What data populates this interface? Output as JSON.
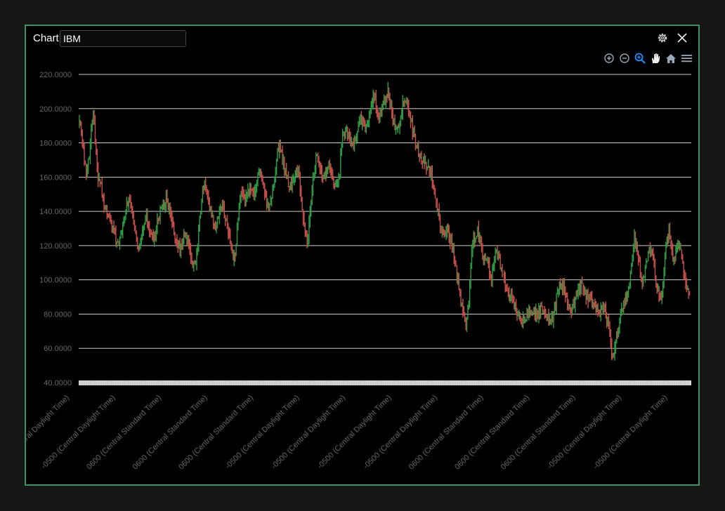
{
  "header": {
    "label": "Chart",
    "symbol_value": "IBM"
  },
  "icons": {
    "settings": "gear-icon",
    "close": "close-icon",
    "toolbar": [
      "zoom-in-icon",
      "zoom-out-icon",
      "zoom-select-icon",
      "pan-hand-icon",
      "home-reset-icon",
      "menu-icon"
    ]
  },
  "colors": {
    "up": "#2e9e44",
    "down": "#c8504a",
    "frame": "#3f8f68",
    "grid": "#cccccc",
    "tick_label": "#666666",
    "active_tool": "#1e90ff"
  },
  "chart_data": {
    "type": "candlestick",
    "symbol": "IBM",
    "ylim": [
      40,
      220
    ],
    "yticks": [
      40,
      60,
      80,
      100,
      120,
      140,
      160,
      180,
      200,
      220
    ],
    "ytick_labels": [
      "40.0000",
      "60.0000",
      "80.0000",
      "100.0000",
      "120.0000",
      "140.0000",
      "160.0000",
      "180.0000",
      "200.0000",
      "220.0000"
    ],
    "grid": true,
    "xtick_labels": [
      "Central Daylight Time)",
      "-0500 (Central Daylight Time)",
      "0600 (Central Standard Time)",
      "0600 (Central Standard Time)",
      "0600 (Central Standard Time)",
      "-0500 (Central Daylight Time)",
      "-0500 (Central Daylight Time)",
      "-0500 (Central Daylight Time)",
      "-0500 (Central Daylight Time)",
      "0600 (Central Standard Time)",
      "0600 (Central Standard Time)",
      "0600 (Central Standard Time)",
      "-0500 (Central Daylight Time)",
      "-0500 (Central Daylight Time)"
    ],
    "close_path": [
      192,
      183,
      172,
      163,
      170,
      185,
      197,
      180,
      160,
      158,
      150,
      143,
      140,
      136,
      132,
      128,
      124,
      122,
      127,
      133,
      140,
      146,
      148,
      140,
      132,
      125,
      118,
      126,
      132,
      139,
      133,
      126,
      122,
      128,
      134,
      139,
      142,
      146,
      147,
      142,
      135,
      128,
      122,
      120,
      118,
      123,
      126,
      122,
      118,
      112,
      106,
      118,
      132,
      147,
      155,
      152,
      146,
      140,
      135,
      132,
      136,
      139,
      143,
      138,
      134,
      126,
      116,
      110,
      121,
      136,
      150,
      148,
      146,
      150,
      154,
      150,
      148,
      158,
      165,
      160,
      152,
      148,
      142,
      146,
      150,
      162,
      176,
      178,
      172,
      166,
      160,
      156,
      152,
      158,
      166,
      162,
      150,
      140,
      130,
      121,
      138,
      152,
      164,
      172,
      170,
      162,
      158,
      163,
      168,
      166,
      160,
      156,
      160,
      164,
      183,
      188,
      186,
      184,
      180,
      178,
      183,
      190,
      194,
      193,
      188,
      190,
      198,
      204,
      208,
      201,
      194,
      198,
      204,
      206,
      210,
      202,
      196,
      190,
      186,
      192,
      200,
      204,
      206,
      198,
      192,
      186,
      180,
      176,
      172,
      167,
      168,
      166,
      165,
      160,
      152,
      146,
      138,
      132,
      128,
      126,
      128,
      124,
      120,
      110,
      102,
      94,
      86,
      78,
      72,
      88,
      112,
      122,
      126,
      128,
      122,
      116,
      112,
      110,
      106,
      102,
      112,
      118,
      114,
      108,
      102,
      98,
      95,
      92,
      88,
      84,
      82,
      80,
      76,
      76,
      78,
      80,
      82,
      80,
      79,
      81,
      83,
      82,
      80,
      78,
      76,
      76,
      80,
      88,
      94,
      98,
      96,
      92,
      88,
      84,
      82,
      86,
      90,
      94,
      98,
      96,
      92,
      90,
      88,
      86,
      84,
      82,
      80,
      82,
      84,
      78,
      70,
      60,
      56,
      66,
      72,
      78,
      84,
      88,
      90,
      98,
      110,
      124,
      118,
      110,
      104,
      98,
      108,
      116,
      118,
      112,
      104,
      96,
      92,
      90,
      110,
      124,
      128,
      118,
      110,
      116,
      122,
      116,
      108,
      102,
      94,
      90
    ],
    "range_start_label": "",
    "range_end_label": ""
  }
}
